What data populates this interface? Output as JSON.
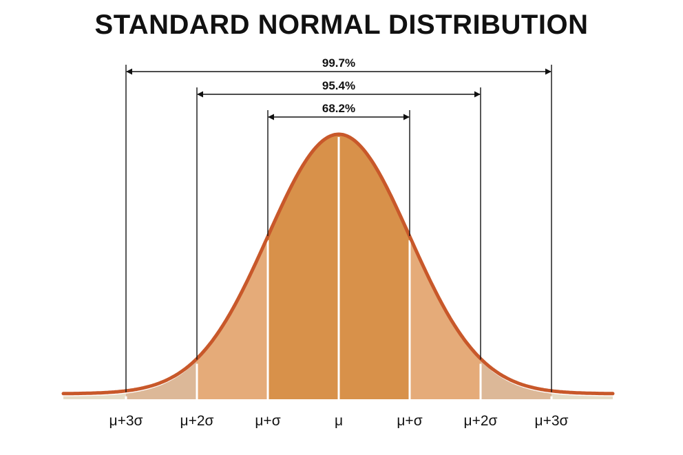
{
  "title": "STANDARD NORMAL DISTRIBUTION",
  "intervals": [
    {
      "label": "99.7%",
      "from_sigma": -3,
      "to_sigma": 3
    },
    {
      "label": "95.4%",
      "from_sigma": -2,
      "to_sigma": 2
    },
    {
      "label": "68.2%",
      "from_sigma": -1,
      "to_sigma": 1
    }
  ],
  "axis_labels": [
    "μ+3σ",
    "μ+2σ",
    "μ+σ",
    "μ",
    "μ+σ",
    "μ+2σ",
    "μ+3σ"
  ],
  "colors": {
    "curve": "#c8582a",
    "band_1sigma": "#d8914a",
    "band_2sigma": "#e5ab79",
    "band_3sigma": "#dcb898",
    "band_tail": "#e6dcc6",
    "lines": "#111111",
    "background": "#ffffff"
  }
}
